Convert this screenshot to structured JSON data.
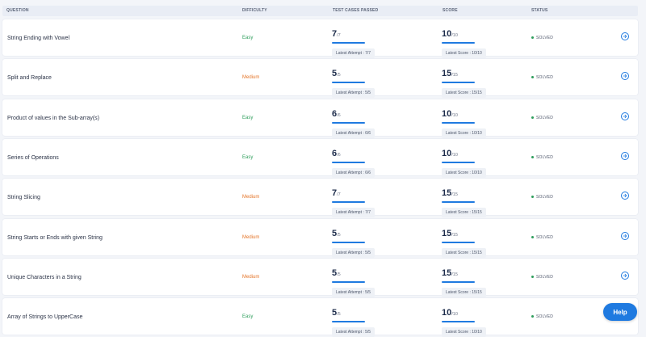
{
  "header": {
    "question": "QUESTION",
    "difficulty": "DIFFICULTY",
    "test_cases": "TEST CASES PASSED",
    "score": "SCORE",
    "status": "STATUS"
  },
  "rows": [
    {
      "name": "String Ending with Vowel",
      "difficulty": "Easy",
      "level": "easy",
      "tc_big": "7",
      "tc_small": "/7",
      "tc_attempt": "Latest Attempt : 7/7",
      "score_big": "10",
      "score_small": "/10",
      "score_attempt": "Latest Score : 10/10",
      "status": "SOLVED"
    },
    {
      "name": "Split and Replace",
      "difficulty": "Medium",
      "level": "medium",
      "tc_big": "5",
      "tc_small": "/5",
      "tc_attempt": "Latest Attempt : 5/5",
      "score_big": "15",
      "score_small": "/15",
      "score_attempt": "Latest Score : 15/15",
      "status": "SOLVED"
    },
    {
      "name": "Product of values in the Sub-array(s)",
      "difficulty": "Easy",
      "level": "easy",
      "tc_big": "6",
      "tc_small": "/6",
      "tc_attempt": "Latest Attempt : 6/6",
      "score_big": "10",
      "score_small": "/10",
      "score_attempt": "Latest Score : 10/10",
      "status": "SOLVED"
    },
    {
      "name": "Series of Operations",
      "difficulty": "Easy",
      "level": "easy",
      "tc_big": "6",
      "tc_small": "/6",
      "tc_attempt": "Latest Attempt : 6/6",
      "score_big": "10",
      "score_small": "/10",
      "score_attempt": "Latest Score : 10/10",
      "status": "SOLVED"
    },
    {
      "name": "String Slicing",
      "difficulty": "Medium",
      "level": "medium",
      "tc_big": "7",
      "tc_small": "/7",
      "tc_attempt": "Latest Attempt : 7/7",
      "score_big": "15",
      "score_small": "/15",
      "score_attempt": "Latest Score : 15/15",
      "status": "SOLVED"
    },
    {
      "name": "String Starts or Ends with given String",
      "difficulty": "Medium",
      "level": "medium",
      "tc_big": "5",
      "tc_small": "/5",
      "tc_attempt": "Latest Attempt : 5/5",
      "score_big": "15",
      "score_small": "/15",
      "score_attempt": "Latest Score : 15/15",
      "status": "SOLVED"
    },
    {
      "name": "Unique Characters in a String",
      "difficulty": "Medium",
      "level": "medium",
      "tc_big": "5",
      "tc_small": "/5",
      "tc_attempt": "Latest Attempt : 5/5",
      "score_big": "15",
      "score_small": "/15",
      "score_attempt": "Latest Score : 15/15",
      "status": "SOLVED"
    },
    {
      "name": "Array of Strings to UpperCase",
      "difficulty": "Easy",
      "level": "easy",
      "tc_big": "5",
      "tc_small": "/5",
      "tc_attempt": "Latest Attempt : 5/5",
      "score_big": "10",
      "score_small": "/10",
      "score_attempt": "Latest Score : 10/10",
      "status": "SOLVED"
    }
  ],
  "help_label": "Help",
  "colors": {
    "accent": "#1f7ae0",
    "easy": "#2e9e5b",
    "medium": "#e5762a",
    "solved_dot": "#2e9e5b"
  },
  "icons": {
    "row_action": "arrow-right-circle-icon",
    "status": "dot-icon"
  }
}
